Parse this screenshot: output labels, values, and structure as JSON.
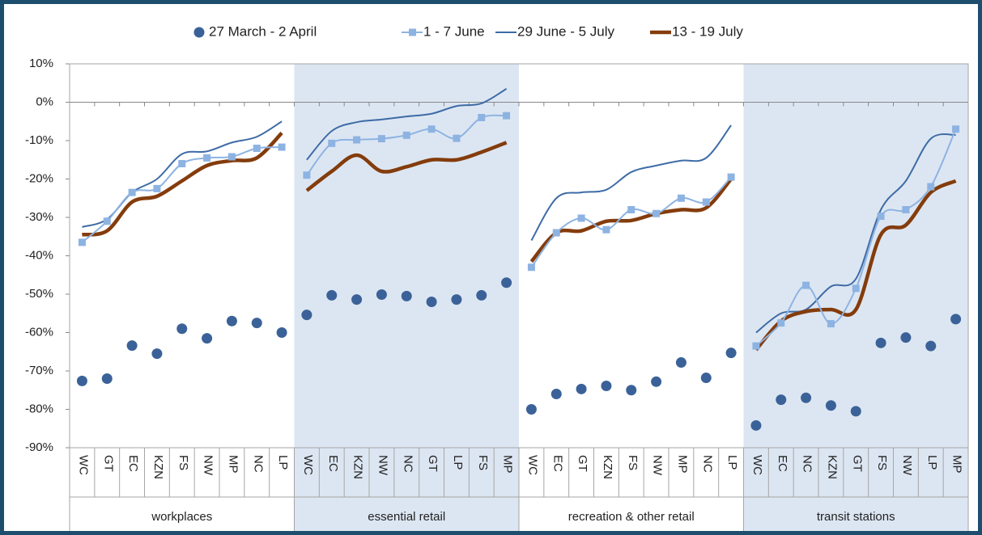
{
  "chart_data": {
    "type": "line",
    "ylim": [
      -90,
      10
    ],
    "yticks": [
      {
        "value": 10,
        "label": "10%"
      },
      {
        "value": 0,
        "label": "0%"
      },
      {
        "value": -10,
        "label": "-10%"
      },
      {
        "value": -20,
        "label": "-20%"
      },
      {
        "value": -30,
        "label": "-30%"
      },
      {
        "value": -40,
        "label": "-40%"
      },
      {
        "value": -50,
        "label": "-50%"
      },
      {
        "value": -60,
        "label": "-60%"
      },
      {
        "value": -70,
        "label": "-70%"
      },
      {
        "value": -80,
        "label": "-80%"
      },
      {
        "value": -90,
        "label": "-90%"
      }
    ],
    "band_color": "#dce6f2",
    "groups": [
      {
        "name": "workplaces",
        "categories": [
          "WC",
          "GT",
          "EC",
          "KZN",
          "FS",
          "NW",
          "MP",
          "NC",
          "LP"
        ]
      },
      {
        "name": "essential retail",
        "categories": [
          "WC",
          "EC",
          "KZN",
          "NW",
          "NC",
          "GT",
          "LP",
          "FS",
          "MP"
        ]
      },
      {
        "name": "recreation & other retail",
        "categories": [
          "WC",
          "EC",
          "GT",
          "KZN",
          "FS",
          "NW",
          "MP",
          "NC",
          "LP"
        ]
      },
      {
        "name": "transit stations",
        "categories": [
          "WC",
          "EC",
          "NC",
          "KZN",
          "GT",
          "FS",
          "NW",
          "LP",
          "MP"
        ]
      }
    ],
    "series": [
      {
        "name": "27 March - 2 April",
        "color": "#3b6298",
        "marker": "circle",
        "line": false,
        "values": [
          -72.6,
          -72,
          -63.4,
          -65.5,
          -59,
          -61.5,
          -57,
          -57.5,
          -60,
          -55.4,
          -50.3,
          -51.4,
          -50.1,
          -50.5,
          -52,
          -51.4,
          -50.3,
          -47,
          -80,
          -76,
          -74.7,
          -73.9,
          -75,
          -72.8,
          -67.8,
          -71.8,
          -65.3,
          -84.2,
          -77.5,
          -77,
          -79,
          -80.5,
          -62.7,
          -61.3,
          -63.5,
          -56.5
        ]
      },
      {
        "name": "1 - 7 June",
        "color": "#8db3e2",
        "marker": "square",
        "line": true,
        "width": 2,
        "values": [
          -36.5,
          -31,
          -23.5,
          -22.5,
          -16,
          -14.5,
          -14.2,
          -12,
          -11.7,
          -19,
          -10.7,
          -9.8,
          -9.5,
          -8.6,
          -7,
          -9.4,
          -4,
          -3.5,
          -43,
          -34,
          -30.2,
          -33.2,
          -28,
          -29,
          -25,
          -26,
          -19.5,
          -63.5,
          -57.5,
          -47.7,
          -57.7,
          -48.5,
          -29.7,
          -28,
          -22,
          -7
        ]
      },
      {
        "name": "29 June - 5 July",
        "color": "#3e6ba6",
        "marker": "none",
        "line": true,
        "width": 2,
        "values": [
          -32.5,
          -30.5,
          -23.5,
          -20,
          -13.5,
          -12.8,
          -10.5,
          -9,
          -5,
          -15,
          -7.5,
          -5.2,
          -4.5,
          -3.7,
          -3,
          -1,
          -0.3,
          3.5,
          -36,
          -25,
          -23.5,
          -22.8,
          -18.2,
          -16.5,
          -15.2,
          -14.5,
          -6,
          -60,
          -55,
          -54,
          -48,
          -46,
          -28,
          -20.5,
          -9.5,
          -8.5
        ]
      },
      {
        "name": "13 - 19 July",
        "color": "#843c0c",
        "marker": "none",
        "line": true,
        "width": 4.5,
        "values": [
          -34.5,
          -33.5,
          -26,
          -24.5,
          -20.5,
          -16.5,
          -15.2,
          -14.5,
          -8,
          -23,
          -18,
          -13.8,
          -18,
          -16.8,
          -15,
          -15,
          -13,
          -10.5,
          -41.5,
          -34,
          -33.5,
          -31,
          -30.8,
          -29,
          -28,
          -27.5,
          -20,
          -64.5,
          -57,
          -54.5,
          -54,
          -54,
          -34.5,
          -32,
          -23.5,
          -20.5
        ]
      }
    ]
  }
}
